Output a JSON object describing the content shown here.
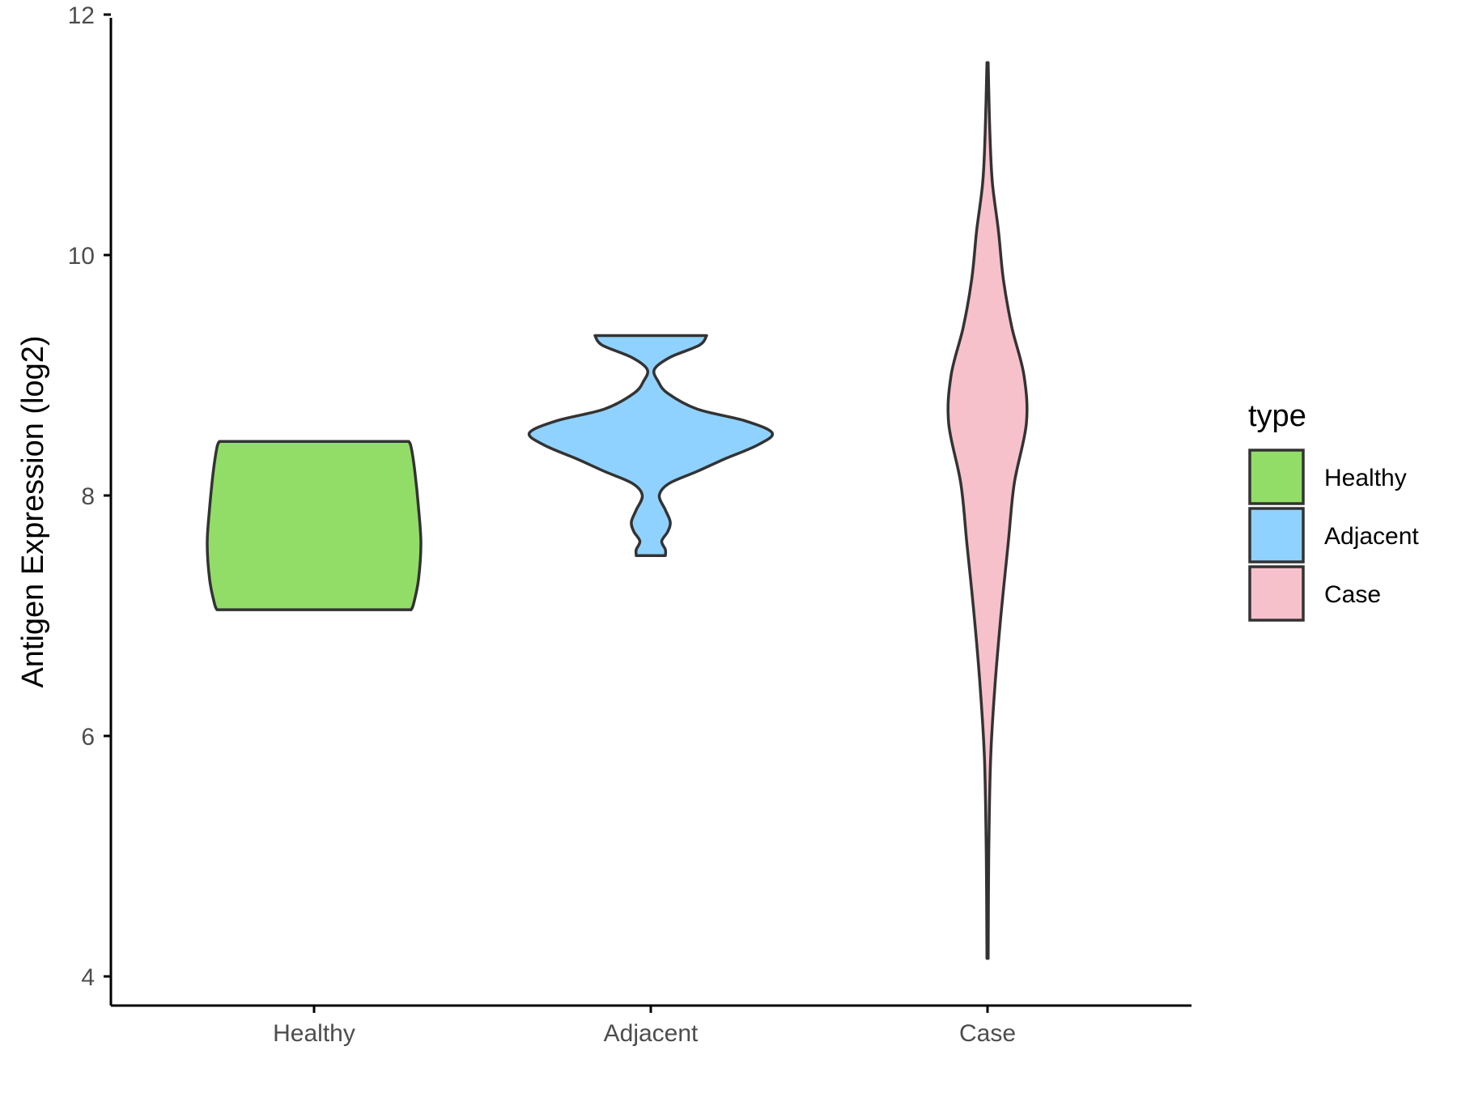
{
  "chart_data": {
    "type": "violin",
    "title": "",
    "xlabel": "",
    "ylabel": "Antigen Expression (log2)",
    "ylim": [
      3.8,
      12
    ],
    "y_ticks": [
      4,
      6,
      8,
      10,
      12
    ],
    "categories": [
      "Healthy",
      "Adjacent",
      "Case"
    ],
    "grid": false,
    "legend": {
      "title": "type",
      "position": "right",
      "entries": [
        "Healthy",
        "Adjacent",
        "Case"
      ]
    },
    "colors": {
      "Healthy": "#92DD67",
      "Adjacent": "#90D2FF",
      "Case": "#F7C1CB",
      "outline": "#333333"
    },
    "series": [
      {
        "category": "Healthy",
        "min": 7.05,
        "max": 8.45,
        "profile": [
          [
            7.05,
            0.8
          ],
          [
            7.1,
            0.82
          ],
          [
            7.3,
            0.86
          ],
          [
            7.6,
            0.88
          ],
          [
            7.9,
            0.86
          ],
          [
            8.2,
            0.83
          ],
          [
            8.4,
            0.8
          ],
          [
            8.45,
            0.78
          ]
        ]
      },
      {
        "category": "Adjacent",
        "min": 7.5,
        "max": 9.33,
        "profile": [
          [
            7.5,
            0.12
          ],
          [
            7.55,
            0.12
          ],
          [
            7.62,
            0.09
          ],
          [
            7.7,
            0.14
          ],
          [
            7.78,
            0.16
          ],
          [
            7.88,
            0.12
          ],
          [
            8.0,
            0.07
          ],
          [
            8.1,
            0.15
          ],
          [
            8.2,
            0.38
          ],
          [
            8.3,
            0.6
          ],
          [
            8.42,
            0.88
          ],
          [
            8.52,
            1.0
          ],
          [
            8.62,
            0.78
          ],
          [
            8.72,
            0.38
          ],
          [
            8.85,
            0.14
          ],
          [
            8.95,
            0.06
          ],
          [
            9.05,
            0.03
          ],
          [
            9.15,
            0.16
          ],
          [
            9.25,
            0.4
          ],
          [
            9.33,
            0.46
          ]
        ]
      },
      {
        "category": "Case",
        "min": 4.15,
        "max": 11.6,
        "profile": [
          [
            4.15,
            0.005
          ],
          [
            5.0,
            0.01
          ],
          [
            5.8,
            0.025
          ],
          [
            6.4,
            0.06
          ],
          [
            7.0,
            0.11
          ],
          [
            7.6,
            0.17
          ],
          [
            8.1,
            0.22
          ],
          [
            8.6,
            0.32
          ],
          [
            9.0,
            0.3
          ],
          [
            9.4,
            0.2
          ],
          [
            9.8,
            0.13
          ],
          [
            10.2,
            0.09
          ],
          [
            10.6,
            0.04
          ],
          [
            11.0,
            0.02
          ],
          [
            11.6,
            0.005
          ]
        ]
      }
    ]
  }
}
